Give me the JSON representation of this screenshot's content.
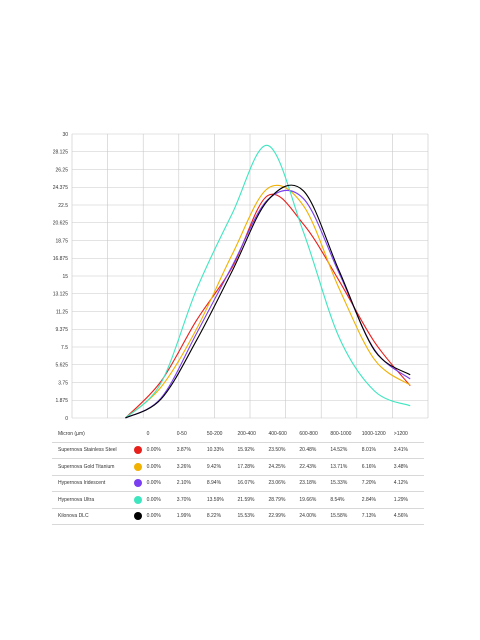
{
  "chart_data": {
    "type": "line",
    "y_ticks": [
      "30",
      "28.125",
      "26.25",
      "24.375",
      "22.5",
      "20.625",
      "18.75",
      "16.875",
      "15",
      "13.125",
      "11.25",
      "9.375",
      "7.5",
      "5.625",
      "3.75",
      "1.875",
      "0"
    ],
    "ylim": [
      0,
      30
    ],
    "grid": true,
    "table_header": "Micron (µm)",
    "categories": [
      "0",
      "0-50",
      "50-200",
      "200-400",
      "400-600",
      "600-800",
      "800-1000",
      "1000-1200",
      ">1200"
    ],
    "series": [
      {
        "name": "Supernova Stainless Steel",
        "color": "#e8201c",
        "labels": [
          "0.00%",
          "3.87%",
          "10.33%",
          "15.92%",
          "23.50%",
          "20.48%",
          "14.52%",
          "8.01%",
          "3.41%"
        ],
        "values": [
          0,
          3.87,
          10.33,
          15.92,
          23.5,
          20.48,
          14.52,
          8.01,
          3.41
        ]
      },
      {
        "name": "Supernova Gold Titanium",
        "color": "#f1b100",
        "labels": [
          "0.00%",
          "3.26%",
          "9.42%",
          "17.28%",
          "24.25%",
          "22.43%",
          "13.71%",
          "6.16%",
          "3.48%"
        ],
        "values": [
          0,
          3.26,
          9.42,
          17.28,
          24.25,
          22.43,
          13.71,
          6.16,
          3.48
        ]
      },
      {
        "name": "Hypernova Iridescent",
        "color": "#7a3ff0",
        "labels": [
          "0.00%",
          "2.10%",
          "8.94%",
          "16.07%",
          "23.06%",
          "23.18%",
          "15.33%",
          "7.20%",
          "4.12%"
        ],
        "values": [
          0,
          2.1,
          8.94,
          16.07,
          23.06,
          23.18,
          15.33,
          7.2,
          4.12
        ]
      },
      {
        "name": "Hypernova Ultra",
        "color": "#3ee6c0",
        "labels": [
          "0.00%",
          "3.70%",
          "13.59%",
          "21.59%",
          "28.79%",
          "19.66%",
          "8.54%",
          "2.84%",
          "1.29%"
        ],
        "values": [
          0,
          3.7,
          13.59,
          21.59,
          28.79,
          19.66,
          8.54,
          2.84,
          1.29
        ]
      },
      {
        "name": "Kilonova DLC",
        "color": "#000000",
        "labels": [
          "0.00%",
          "1.99%",
          "8.22%",
          "15.53%",
          "22.99%",
          "24.00%",
          "15.58%",
          "7.13%",
          "4.56%"
        ],
        "values": [
          0,
          1.99,
          8.22,
          15.53,
          22.99,
          24.0,
          15.58,
          7.13,
          4.56
        ]
      }
    ]
  }
}
